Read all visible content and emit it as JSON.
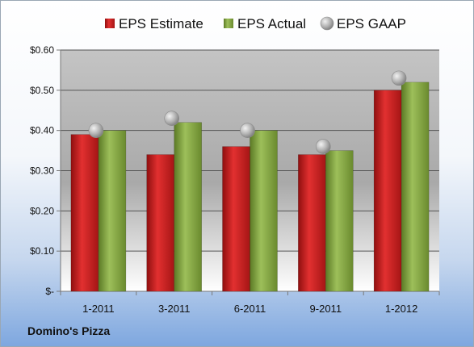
{
  "brand": "Domino's Pizza",
  "chart_data": {
    "type": "bar",
    "categories": [
      "1-2011",
      "3-2011",
      "6-2011",
      "9-2011",
      "1-2012"
    ],
    "series": [
      {
        "name": "EPS Estimate",
        "type": "bar",
        "color": "#cc1f1f",
        "values": [
          0.39,
          0.34,
          0.36,
          0.34,
          0.5
        ]
      },
      {
        "name": "EPS Actual",
        "type": "bar",
        "color": "#7f9f3c",
        "values": [
          0.4,
          0.42,
          0.4,
          0.35,
          0.52
        ]
      },
      {
        "name": "EPS GAAP",
        "type": "scatter",
        "color": "#b3b3b3",
        "values": [
          0.4,
          0.43,
          0.4,
          0.36,
          0.53
        ]
      }
    ],
    "ylim": [
      0,
      0.6
    ],
    "yticks": [
      0,
      0.1,
      0.2,
      0.3,
      0.4,
      0.5,
      0.6
    ],
    "ytick_labels": [
      "$-",
      "$0.10",
      "$0.20",
      "$0.30",
      "$0.40",
      "$0.50",
      "$0.60"
    ],
    "grid": true,
    "legend": "top"
  }
}
